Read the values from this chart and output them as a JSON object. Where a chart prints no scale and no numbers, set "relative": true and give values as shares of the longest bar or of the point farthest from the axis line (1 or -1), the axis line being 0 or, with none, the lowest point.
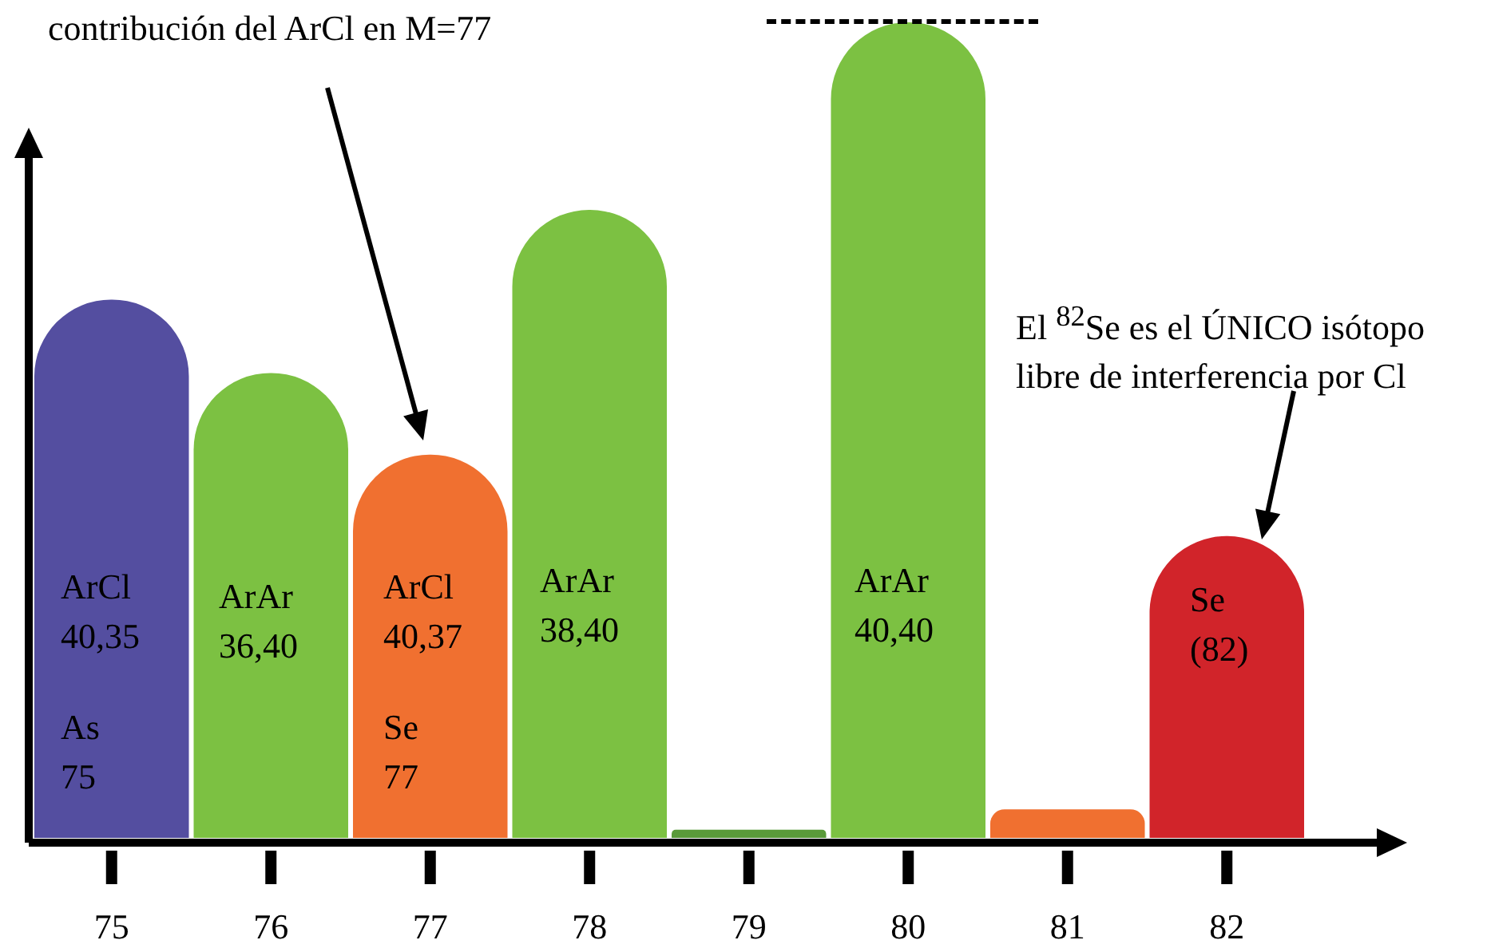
{
  "chart_data": {
    "type": "bar",
    "relative": true,
    "categories": [
      "75",
      "76",
      "77",
      "78",
      "79",
      "80",
      "81",
      "82"
    ],
    "values": [
      0.66,
      0.57,
      0.47,
      0.77,
      0.01,
      1,
      0.035,
      0.37
    ],
    "colors": [
      "#544ea0",
      "#7cc142",
      "#f07030",
      "#7cc142",
      "#5a9a3a",
      "#7cc142",
      "#f07030",
      "#d1242a"
    ],
    "annotations": [
      "contribución del ArCl en M=77",
      "El $^{82}$Se es el ÚNICO isótopo\nlibre de interferencia por Cl",
      "ArCl\n40,35",
      "As\n75",
      "ArAr\n36,40",
      "ArCl\n40,37",
      "Se\n77",
      "ArAr\n38,40",
      "ArAr\n40,40",
      "Se\n(82)"
    ],
    "grid": false,
    "legend": false
  }
}
